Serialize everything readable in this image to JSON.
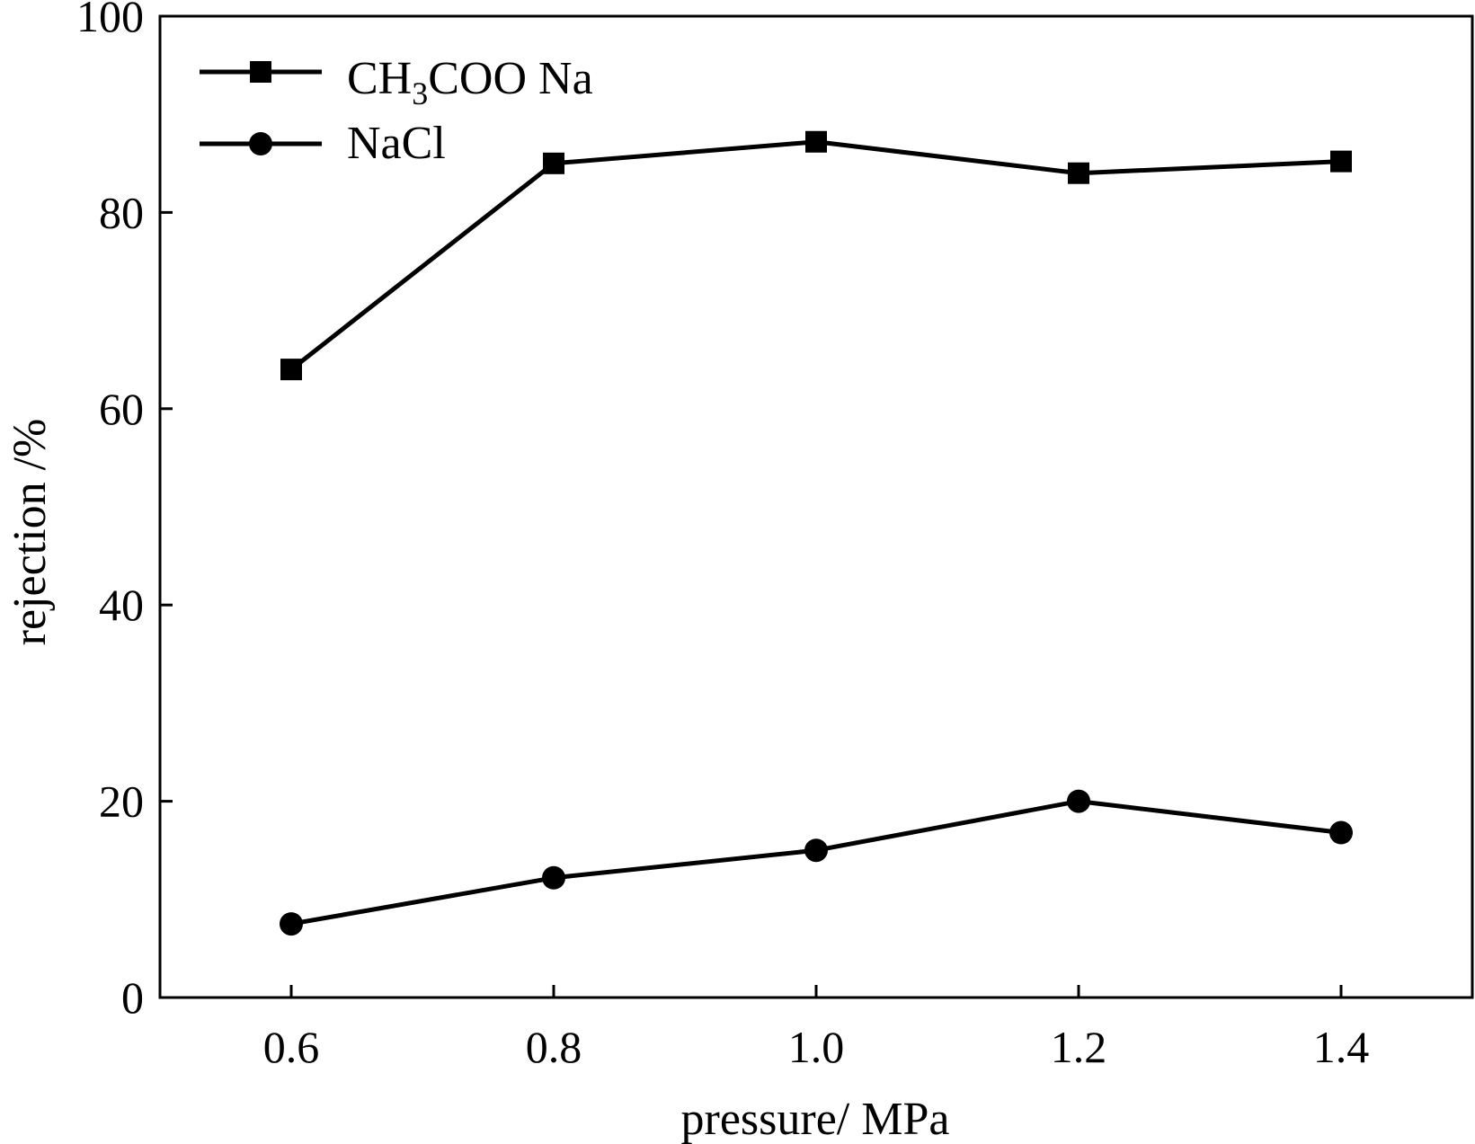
{
  "chart_data": {
    "type": "line",
    "title": "",
    "xlabel": "pressure/ MPa",
    "ylabel": "rejection /%",
    "x": [
      0.6,
      0.8,
      1.0,
      1.2,
      1.4
    ],
    "x_tick_labels": [
      "0.6",
      "0.8",
      "1.0",
      "1.2",
      "1.4"
    ],
    "y_tick_labels": [
      "0",
      "20",
      "40",
      "60",
      "80",
      "100"
    ],
    "xlim": [
      0.5,
      1.5
    ],
    "ylim": [
      0,
      100
    ],
    "grid": false,
    "legend_position": "top-left",
    "series": [
      {
        "name": "CH3COO Na",
        "label_main": "CH",
        "label_sub": "3",
        "label_tail": "COO Na",
        "marker": "square",
        "color": "#000000",
        "values": [
          64.0,
          85.0,
          87.2,
          84.0,
          85.2
        ]
      },
      {
        "name": "NaCl",
        "label_main": "NaCl",
        "marker": "circle",
        "color": "#000000",
        "values": [
          7.5,
          12.2,
          15.0,
          20.0,
          16.8
        ]
      }
    ]
  }
}
